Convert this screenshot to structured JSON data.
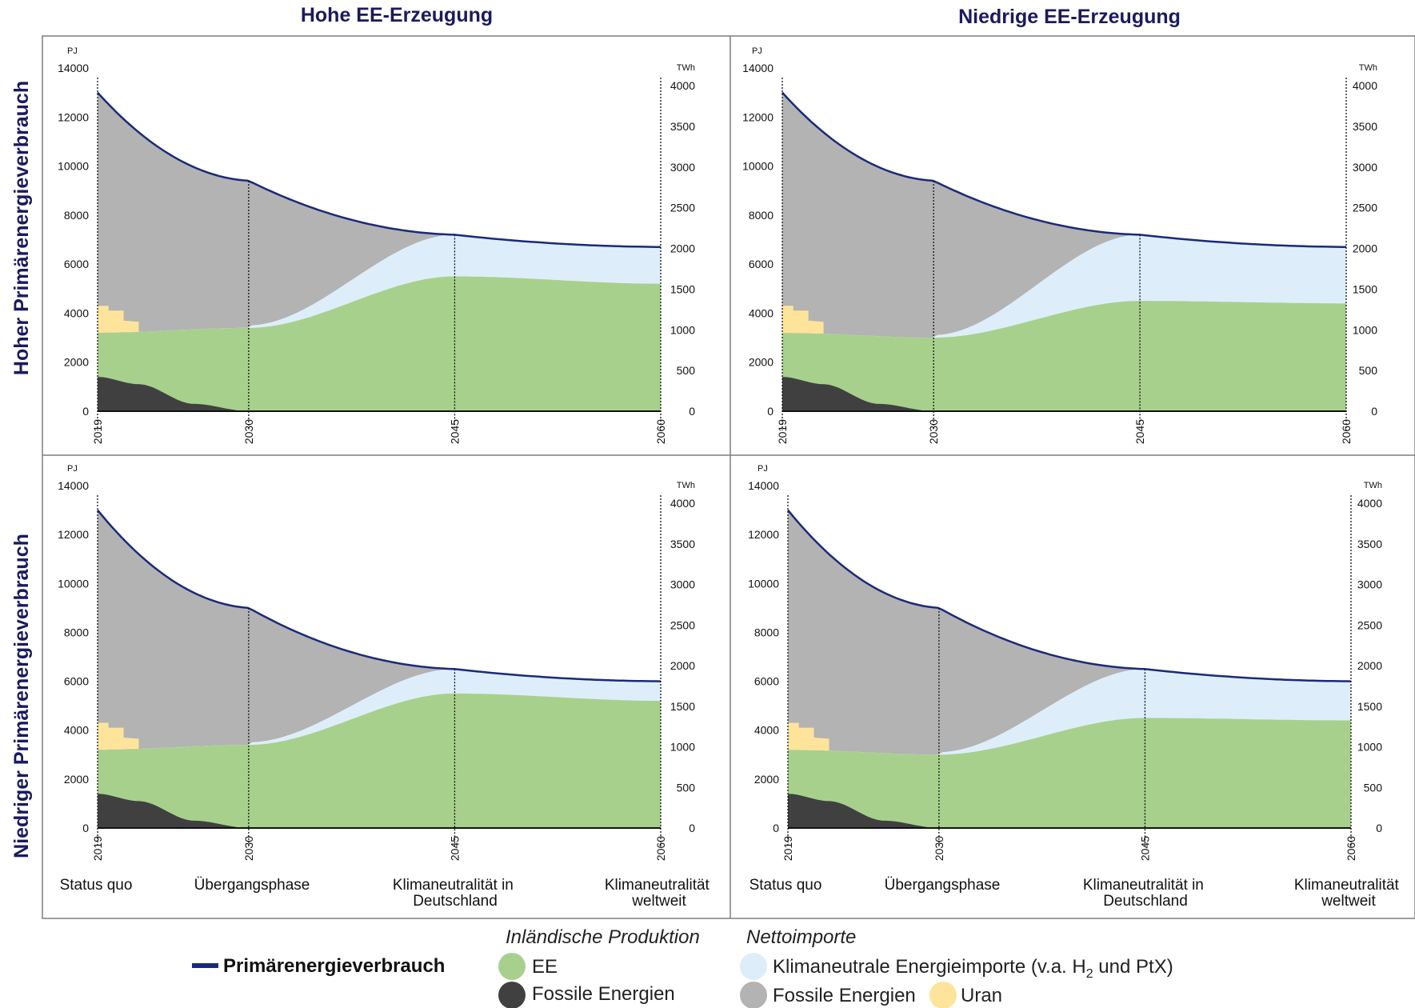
{
  "column_titles": [
    "Hohe EE-Erzeugung",
    "Niedrige EE-Erzeugung"
  ],
  "row_titles": [
    "Hoher  Primärenergieverbrauch",
    "Niedriger Primärenergieverbrauch"
  ],
  "phases": [
    "Status quo",
    "Übergangsphase",
    "Klimaneutralität in Deutschland",
    "Klimaneutralität weltweit"
  ],
  "legend": {
    "line_label": "Primärenergieverbrauch",
    "domestic_title": "Inländische Produktion",
    "imports_title": "Nettoimporte",
    "ee": "EE",
    "fossil_domestic": "Fossile Energien",
    "climate_imports": "Klimaneutrale Energieimporte (v.a. H",
    "climate_imports_sub": "2",
    "climate_imports_tail": " und PtX)",
    "fossil_imports": "Fossile Energien",
    "uranium": "Uran"
  },
  "colors": {
    "line": "#1a2a7a",
    "ee": "#a8d08d",
    "fossil_domestic": "#404040",
    "climate_imports": "#ddeefa",
    "fossil_imports": "#b3b3b3",
    "uranium": "#fde49a",
    "title": "#1a1a5e"
  },
  "chart_data": [
    {
      "type": "area",
      "panel": "Hohe EE-Erzeugung / Hoher Primärenergieverbrauch",
      "x": [
        2019,
        2030,
        2045,
        2060
      ],
      "left_axis": {
        "unit": "PJ",
        "ticks": [
          0,
          2000,
          4000,
          6000,
          8000,
          10000,
          12000,
          14000
        ],
        "range": [
          0,
          14000
        ]
      },
      "right_axis": {
        "unit": "TWh",
        "ticks": [
          0,
          500,
          1000,
          1500,
          2000,
          2500,
          3000,
          3500,
          4000
        ]
      },
      "series": [
        {
          "name": "Primärenergieverbrauch",
          "x": [
            2019,
            2030,
            2045,
            2060
          ],
          "values": [
            13000,
            9400,
            7200,
            6700
          ]
        },
        {
          "name": "EE",
          "x": [
            2019,
            2030,
            2045,
            2060
          ],
          "values": [
            3200,
            3400,
            5500,
            5200
          ]
        },
        {
          "name": "Fossile Energien",
          "x": [
            2019,
            2022,
            2026,
            2030
          ],
          "values": [
            1400,
            1100,
            300,
            0
          ]
        },
        {
          "name": "Klimaneutrale Energieimporte (v.a. H2 und PtX)",
          "x": [
            2030,
            2045,
            2060
          ],
          "values": [
            100,
            1700,
            1500
          ]
        },
        {
          "name": "Uran",
          "x": [
            2019,
            2022
          ],
          "values": [
            1100,
            500
          ]
        }
      ]
    },
    {
      "type": "area",
      "panel": "Niedrige EE-Erzeugung / Hoher Primärenergieverbrauch",
      "x": [
        2019,
        2030,
        2045,
        2060
      ],
      "left_axis": {
        "unit": "PJ",
        "ticks": [
          0,
          2000,
          4000,
          6000,
          8000,
          10000,
          12000,
          14000
        ],
        "range": [
          0,
          14000
        ]
      },
      "right_axis": {
        "unit": "TWh",
        "ticks": [
          0,
          500,
          1000,
          1500,
          2000,
          2500,
          3000,
          3500,
          4000
        ]
      },
      "series": [
        {
          "name": "Primärenergieverbrauch",
          "x": [
            2019,
            2030,
            2045,
            2060
          ],
          "values": [
            13000,
            9400,
            7200,
            6700
          ]
        },
        {
          "name": "EE",
          "x": [
            2019,
            2030,
            2045,
            2060
          ],
          "values": [
            3200,
            3000,
            4500,
            4400
          ]
        },
        {
          "name": "Fossile Energien",
          "x": [
            2019,
            2022,
            2026,
            2030
          ],
          "values": [
            1400,
            1100,
            300,
            0
          ]
        },
        {
          "name": "Klimaneutrale Energieimporte (v.a. H2 und PtX)",
          "x": [
            2030,
            2045,
            2060
          ],
          "values": [
            100,
            2700,
            2300
          ]
        },
        {
          "name": "Uran",
          "x": [
            2019,
            2022
          ],
          "values": [
            1100,
            500
          ]
        }
      ]
    },
    {
      "type": "area",
      "panel": "Hohe EE-Erzeugung / Niedriger Primärenergieverbrauch",
      "x": [
        2019,
        2030,
        2045,
        2060
      ],
      "left_axis": {
        "unit": "PJ",
        "ticks": [
          0,
          2000,
          4000,
          6000,
          8000,
          10000,
          12000,
          14000
        ],
        "range": [
          0,
          14000
        ]
      },
      "right_axis": {
        "unit": "TWh",
        "ticks": [
          0,
          500,
          1000,
          1500,
          2000,
          2500,
          3000,
          3500,
          4000
        ]
      },
      "series": [
        {
          "name": "Primärenergieverbrauch",
          "x": [
            2019,
            2030,
            2045,
            2060
          ],
          "values": [
            13000,
            9000,
            6500,
            6000
          ]
        },
        {
          "name": "EE",
          "x": [
            2019,
            2030,
            2045,
            2060
          ],
          "values": [
            3200,
            3400,
            5500,
            5200
          ]
        },
        {
          "name": "Fossile Energien",
          "x": [
            2019,
            2022,
            2026,
            2030
          ],
          "values": [
            1400,
            1100,
            300,
            0
          ]
        },
        {
          "name": "Klimaneutrale Energieimporte (v.a. H2 und PtX)",
          "x": [
            2030,
            2045,
            2060
          ],
          "values": [
            100,
            1000,
            800
          ]
        },
        {
          "name": "Uran",
          "x": [
            2019,
            2022
          ],
          "values": [
            1100,
            500
          ]
        }
      ]
    },
    {
      "type": "area",
      "panel": "Niedrige EE-Erzeugung / Niedriger Primärenergieverbrauch",
      "x": [
        2019,
        2030,
        2045,
        2060
      ],
      "left_axis": {
        "unit": "PJ",
        "ticks": [
          0,
          2000,
          4000,
          6000,
          8000,
          10000,
          12000,
          14000
        ],
        "range": [
          0,
          14000
        ]
      },
      "right_axis": {
        "unit": "TWh",
        "ticks": [
          0,
          500,
          1000,
          1500,
          2000,
          2500,
          3000,
          3500,
          4000
        ]
      },
      "series": [
        {
          "name": "Primärenergieverbrauch",
          "x": [
            2019,
            2030,
            2045,
            2060
          ],
          "values": [
            13000,
            9000,
            6500,
            6000
          ]
        },
        {
          "name": "EE",
          "x": [
            2019,
            2030,
            2045,
            2060
          ],
          "values": [
            3200,
            3000,
            4500,
            4400
          ]
        },
        {
          "name": "Fossile Energien",
          "x": [
            2019,
            2022,
            2026,
            2030
          ],
          "values": [
            1400,
            1100,
            300,
            0
          ]
        },
        {
          "name": "Klimaneutrale Energieimporte (v.a. H2 und PtX)",
          "x": [
            2030,
            2045,
            2060
          ],
          "values": [
            100,
            2000,
            1600
          ]
        },
        {
          "name": "Uran",
          "x": [
            2019,
            2022
          ],
          "values": [
            1100,
            500
          ]
        }
      ]
    }
  ]
}
